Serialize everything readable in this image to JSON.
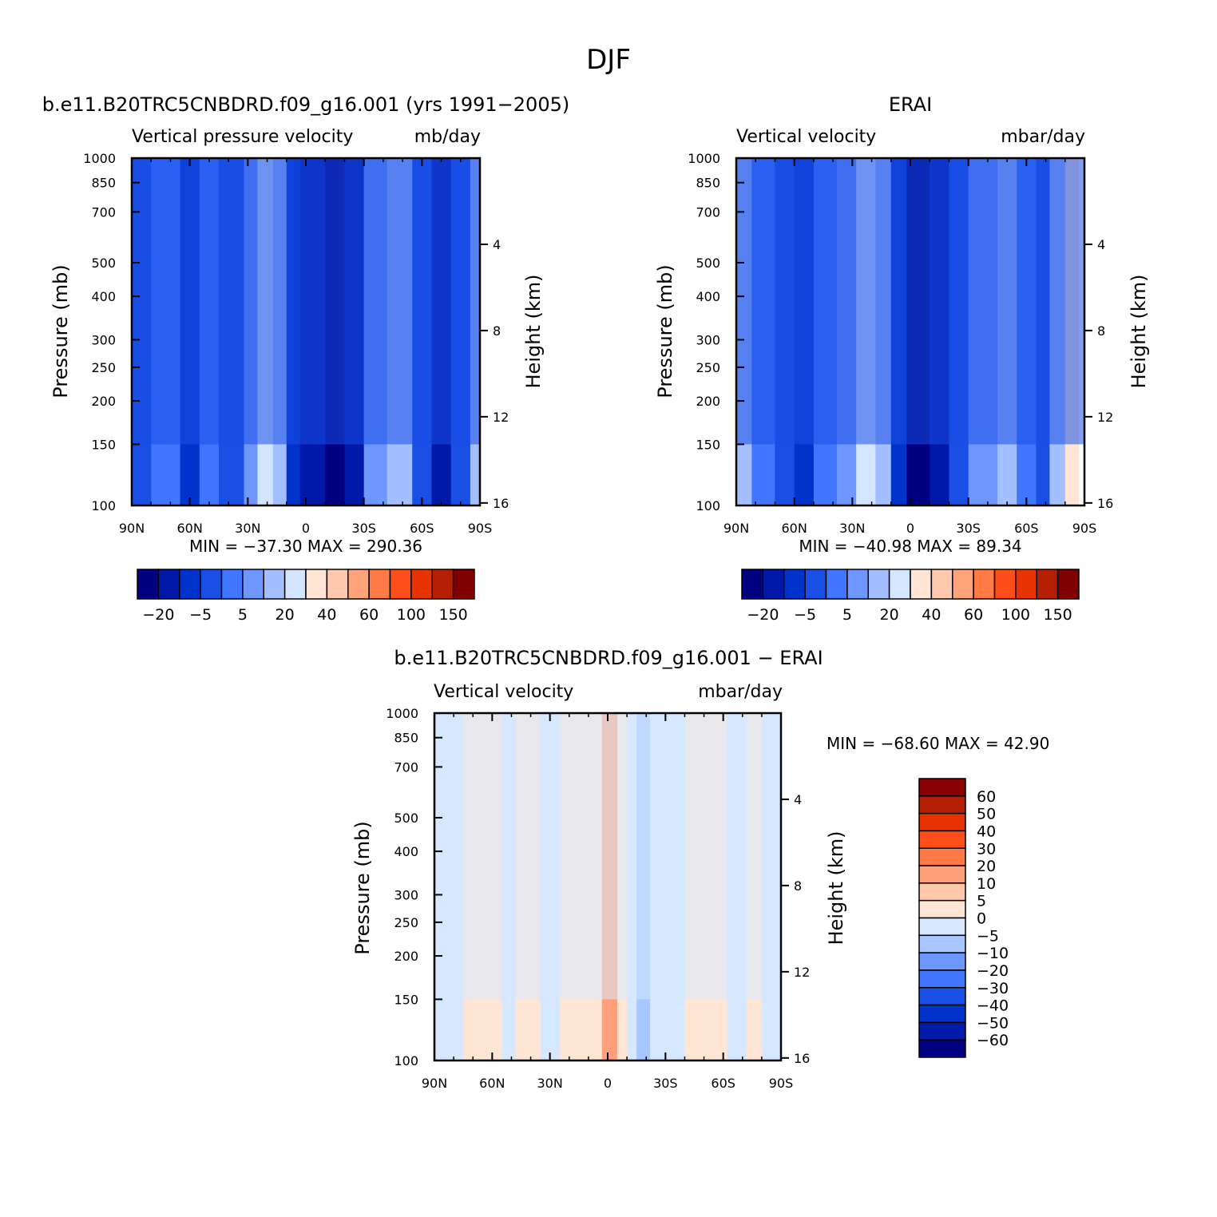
{
  "page_title": "DJF",
  "colors": {
    "model_levels": [
      "#000080",
      "#0018a8",
      "#0033cc",
      "#1a4fe6",
      "#3f75ff",
      "#6e96ff",
      "#a3bfff",
      "#d4e6ff",
      "#ffe6d4",
      "#ffc9ad",
      "#ffa37a",
      "#ff7a45",
      "#ff4d1a",
      "#e63300",
      "#b31f00",
      "#800000"
    ],
    "diff_levels": [
      "#000080",
      "#001aaa",
      "#0033cc",
      "#1a4fe6",
      "#3f75ff",
      "#6e96ff",
      "#a8c6ff",
      "#d5e8ff",
      "#ffe6d4",
      "#ffc8aa",
      "#ffa07a",
      "#ff7a45",
      "#ff4d1a",
      "#e63300",
      "#b31f00",
      "#8b0000"
    ]
  },
  "chart_data": [
    {
      "type": "heatmap",
      "title": "b.e11.B20TRC5CNBDRD.f09_g16.001 (yrs 1991−2005)",
      "left_label": "Vertical pressure velocity",
      "right_label": "mb/day",
      "ylabel": "Pressure (mb)",
      "y2label": "Height (km)",
      "x_ticks": [
        "90N",
        "60N",
        "30N",
        "0",
        "30S",
        "60S",
        "90S"
      ],
      "y_ticks": [
        "100",
        "150",
        "200",
        "250",
        "300",
        "400",
        "500",
        "700",
        "850",
        "1000"
      ],
      "y_tick_values": [
        100,
        150,
        200,
        250,
        300,
        400,
        500,
        700,
        850,
        1000
      ],
      "y2_ticks": [
        "16",
        "12",
        "8",
        "4"
      ],
      "y2_tick_values": [
        16,
        12,
        8,
        4
      ],
      "xlim": [
        90,
        -90
      ],
      "ylim": [
        1000,
        100
      ],
      "y_scale": "log",
      "stats": "MIN = −37.30   MAX = 290.36",
      "colorbar_labels": [
        "−20",
        "−5",
        "5",
        "20",
        "40",
        "60",
        "100",
        "150"
      ],
      "bands": [
        {
          "lat": 90,
          "level": 3
        },
        {
          "lat": 80,
          "level": 4
        },
        {
          "lat": 65,
          "level": 2
        },
        {
          "lat": 55,
          "level": 4
        },
        {
          "lat": 45,
          "level": 3
        },
        {
          "lat": 32,
          "level": 5
        },
        {
          "lat": 25,
          "level": 7
        },
        {
          "lat": 17,
          "level": 6
        },
        {
          "lat": 10,
          "level": 2
        },
        {
          "lat": 3,
          "level": 1
        },
        {
          "lat": -10,
          "level": 0
        },
        {
          "lat": -20,
          "level": 1
        },
        {
          "lat": -30,
          "level": 5
        },
        {
          "lat": -42,
          "level": 6
        },
        {
          "lat": -55,
          "level": 3
        },
        {
          "lat": -65,
          "level": 1
        },
        {
          "lat": -75,
          "level": 3
        },
        {
          "lat": -85,
          "level": 6
        },
        {
          "lat": -90,
          "level": 5
        }
      ],
      "upper_level": 3
    },
    {
      "type": "heatmap",
      "title": "ERAI",
      "left_label": "Vertical velocity",
      "right_label": "mbar/day",
      "ylabel": "Pressure (mb)",
      "y2label": "Height (km)",
      "x_ticks": [
        "90N",
        "60N",
        "30N",
        "0",
        "30S",
        "60S",
        "90S"
      ],
      "y_ticks": [
        "100",
        "150",
        "200",
        "250",
        "300",
        "400",
        "500",
        "700",
        "850",
        "1000"
      ],
      "y_tick_values": [
        100,
        150,
        200,
        250,
        300,
        400,
        500,
        700,
        850,
        1000
      ],
      "y2_ticks": [
        "16",
        "12",
        "8",
        "4"
      ],
      "y2_tick_values": [
        16,
        12,
        8,
        4
      ],
      "xlim": [
        90,
        -90
      ],
      "ylim": [
        1000,
        100
      ],
      "y_scale": "log",
      "stats": "MIN = −40.98   MAX =  89.34",
      "colorbar_labels": [
        "−20",
        "−5",
        "5",
        "20",
        "40",
        "60",
        "100",
        "150"
      ],
      "bands": [
        {
          "lat": 90,
          "level": 6
        },
        {
          "lat": 82,
          "level": 4
        },
        {
          "lat": 70,
          "level": 3
        },
        {
          "lat": 60,
          "level": 2
        },
        {
          "lat": 50,
          "level": 4
        },
        {
          "lat": 38,
          "level": 5
        },
        {
          "lat": 28,
          "level": 7
        },
        {
          "lat": 18,
          "level": 6
        },
        {
          "lat": 10,
          "level": 2
        },
        {
          "lat": 2,
          "level": 0
        },
        {
          "lat": -10,
          "level": 1
        },
        {
          "lat": -20,
          "level": 3
        },
        {
          "lat": -30,
          "level": 5
        },
        {
          "lat": -45,
          "level": 6
        },
        {
          "lat": -55,
          "level": 4
        },
        {
          "lat": -65,
          "level": 3
        },
        {
          "lat": -72,
          "level": 6
        },
        {
          "lat": -80,
          "level": 8
        },
        {
          "lat": -87,
          "level": 9
        }
      ],
      "upper_level": 3
    },
    {
      "type": "heatmap",
      "title": "b.e11.B20TRC5CNBDRD.f09_g16.001 − ERAI",
      "left_label": "Vertical velocity",
      "right_label": "mbar/day",
      "ylabel": "Pressure (mb)",
      "y2label": "Height (km)",
      "x_ticks": [
        "90N",
        "60N",
        "30N",
        "0",
        "30S",
        "60S",
        "90S"
      ],
      "y_ticks": [
        "100",
        "150",
        "200",
        "250",
        "300",
        "400",
        "500",
        "700",
        "850",
        "1000"
      ],
      "y_tick_values": [
        100,
        150,
        200,
        250,
        300,
        400,
        500,
        700,
        850,
        1000
      ],
      "y2_ticks": [
        "16",
        "12",
        "8",
        "4"
      ],
      "y2_tick_values": [
        16,
        12,
        8,
        4
      ],
      "xlim": [
        90,
        -90
      ],
      "ylim": [
        1000,
        100
      ],
      "y_scale": "log",
      "stats": "MIN = −68.60   MAX =   42.90",
      "colorbar_labels": [
        "60",
        "50",
        "40",
        "30",
        "20",
        "10",
        "5",
        "0",
        "−5",
        "−10",
        "−20",
        "−30",
        "−40",
        "−50",
        "−60"
      ],
      "bands": [
        {
          "lat": 90,
          "level": 7
        },
        {
          "lat": 75,
          "level": 8
        },
        {
          "lat": 55,
          "level": 7
        },
        {
          "lat": 48,
          "level": 8
        },
        {
          "lat": 35,
          "level": 7
        },
        {
          "lat": 25,
          "level": 8
        },
        {
          "lat": 10,
          "level": 8
        },
        {
          "lat": 3,
          "level": 10
        },
        {
          "lat": -5,
          "level": 8
        },
        {
          "lat": -10,
          "level": 7
        },
        {
          "lat": -15,
          "level": 6
        },
        {
          "lat": -22,
          "level": 7
        },
        {
          "lat": -30,
          "level": 7
        },
        {
          "lat": -40,
          "level": 8
        },
        {
          "lat": -62,
          "level": 7
        },
        {
          "lat": -72,
          "level": 8
        },
        {
          "lat": -80,
          "level": 7
        },
        {
          "lat": -90,
          "level": 7
        }
      ],
      "upper_level": 7
    }
  ]
}
